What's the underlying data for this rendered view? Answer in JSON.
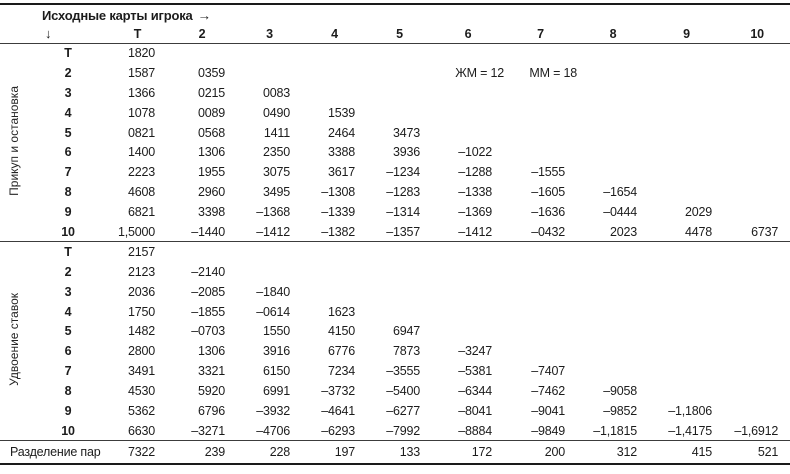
{
  "header": {
    "title": "Исходные карты игрока",
    "arrow_right": "→",
    "arrow_down": "↓",
    "columns": [
      "Т",
      "2",
      "3",
      "4",
      "5",
      "6",
      "7",
      "8",
      "9",
      "10"
    ]
  },
  "sections": [
    {
      "label": "Прикуп и остановка",
      "rows": [
        {
          "label": "Т",
          "values": [
            "1820",
            "",
            "",
            "",
            "",
            "",
            "",
            "",
            "",
            ""
          ]
        },
        {
          "label": "2",
          "values": [
            "1587",
            "0359",
            "",
            "",
            "",
            "",
            "",
            "",
            "",
            ""
          ],
          "annotations": {
            "5": "ЖМ = 12",
            "6": "ММ = 18"
          }
        },
        {
          "label": "3",
          "values": [
            "1366",
            "0215",
            "0083",
            "",
            "",
            "",
            "",
            "",
            "",
            ""
          ]
        },
        {
          "label": "4",
          "values": [
            "1078",
            "0089",
            "0490",
            "1539",
            "",
            "",
            "",
            "",
            "",
            ""
          ]
        },
        {
          "label": "5",
          "values": [
            "0821",
            "0568",
            "1411",
            "2464",
            "3473",
            "",
            "",
            "",
            "",
            ""
          ]
        },
        {
          "label": "6",
          "values": [
            "1400",
            "1306",
            "2350",
            "3388",
            "3936",
            "–1022",
            "",
            "",
            "",
            ""
          ]
        },
        {
          "label": "7",
          "values": [
            "2223",
            "1955",
            "3075",
            "3617",
            "–1234",
            "–1288",
            "–1555",
            "",
            "",
            ""
          ]
        },
        {
          "label": "8",
          "values": [
            "4608",
            "2960",
            "3495",
            "–1308",
            "–1283",
            "–1338",
            "–1605",
            "–1654",
            "",
            ""
          ]
        },
        {
          "label": "9",
          "values": [
            "6821",
            "3398",
            "–1368",
            "–1339",
            "–1314",
            "–1369",
            "–1636",
            "–0444",
            "2029",
            ""
          ]
        },
        {
          "label": "10",
          "values": [
            "1,5000",
            "–1440",
            "–1412",
            "–1382",
            "–1357",
            "–1412",
            "–0432",
            "2023",
            "4478",
            "6737"
          ]
        }
      ]
    },
    {
      "label": "Удвоение ставок",
      "rows": [
        {
          "label": "Т",
          "values": [
            "2157",
            "",
            "",
            "",
            "",
            "",
            "",
            "",
            "",
            ""
          ]
        },
        {
          "label": "2",
          "values": [
            "2123",
            "–2140",
            "",
            "",
            "",
            "",
            "",
            "",
            "",
            ""
          ]
        },
        {
          "label": "3",
          "values": [
            "2036",
            "–2085",
            "–1840",
            "",
            "",
            "",
            "",
            "",
            "",
            ""
          ]
        },
        {
          "label": "4",
          "values": [
            "1750",
            "–1855",
            "–0614",
            "1623",
            "",
            "",
            "",
            "",
            "",
            ""
          ]
        },
        {
          "label": "5",
          "values": [
            "1482",
            "–0703",
            "1550",
            "4150",
            "6947",
            "",
            "",
            "",
            "",
            ""
          ]
        },
        {
          "label": "6",
          "values": [
            "2800",
            "1306",
            "3916",
            "6776",
            "7873",
            "–3247",
            "",
            "",
            "",
            ""
          ]
        },
        {
          "label": "7",
          "values": [
            "3491",
            "3321",
            "6150",
            "7234",
            "–3555",
            "–5381",
            "–7407",
            "",
            "",
            ""
          ]
        },
        {
          "label": "8",
          "values": [
            "4530",
            "5920",
            "6991",
            "–3732",
            "–5400",
            "–6344",
            "–7462",
            "–9058",
            "",
            ""
          ]
        },
        {
          "label": "9",
          "values": [
            "5362",
            "6796",
            "–3932",
            "–4641",
            "–6277",
            "–8041",
            "–9041",
            "–9852",
            "–1,1806",
            ""
          ]
        },
        {
          "label": "10",
          "values": [
            "6630",
            "–3271",
            "–4706",
            "–6293",
            "–7992",
            "–8884",
            "–9849",
            "–1,1815",
            "–1,4175",
            "–1,6912"
          ]
        }
      ]
    }
  ],
  "footer": {
    "label": "Разделение пар",
    "values": [
      "7322",
      "239",
      "228",
      "197",
      "133",
      "172",
      "200",
      "312",
      "415",
      "521"
    ]
  }
}
